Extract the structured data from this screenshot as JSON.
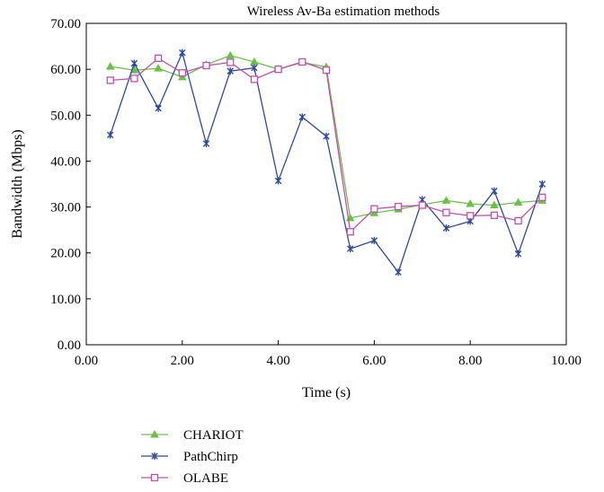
{
  "chart_data": {
    "type": "line",
    "title": "Wireless Av-Ba estimation methods",
    "xlabel": "Time (s)",
    "ylabel": "Bandwidth (Mbps)",
    "xlim": [
      0,
      10
    ],
    "ylim": [
      0,
      70
    ],
    "xticks": [
      "0.00",
      "2.00",
      "4.00",
      "6.00",
      "8.00",
      "10.00"
    ],
    "yticks": [
      "0.00",
      "10.00",
      "20.00",
      "30.00",
      "40.00",
      "50.00",
      "60.00",
      "70.00"
    ],
    "grid": false,
    "legend_position": "bottom-left",
    "x": [
      0.5,
      1.0,
      1.5,
      2.0,
      2.5,
      3.0,
      3.5,
      4.0,
      4.5,
      5.0,
      5.5,
      6.0,
      6.5,
      7.0,
      7.5,
      8.0,
      8.5,
      9.0,
      9.5
    ],
    "series": [
      {
        "name": "CHARIOT",
        "color": "#6cc04a",
        "marker": "triangle",
        "values": [
          60.6,
          59.8,
          60.2,
          58.3,
          61.0,
          63.0,
          61.6,
          60.0,
          61.5,
          60.5,
          27.6,
          28.7,
          29.5,
          30.5,
          31.4,
          30.7,
          30.4,
          31.0,
          31.4
        ]
      },
      {
        "name": "PathChirp",
        "color": "#2e4a9a",
        "marker": "star",
        "values": [
          45.7,
          61.3,
          51.5,
          63.6,
          43.8,
          59.6,
          60.3,
          35.7,
          49.6,
          45.4,
          20.9,
          22.7,
          15.8,
          31.6,
          25.4,
          26.9,
          33.5,
          19.8,
          35.0
        ]
      },
      {
        "name": "OLABE",
        "color": "#c050b0",
        "marker": "square",
        "values": [
          57.6,
          58.0,
          62.4,
          59.2,
          60.8,
          61.5,
          57.8,
          60.0,
          61.6,
          59.8,
          24.6,
          29.6,
          30.1,
          30.4,
          28.8,
          28.1,
          28.2,
          27.0,
          32.1
        ]
      }
    ]
  }
}
